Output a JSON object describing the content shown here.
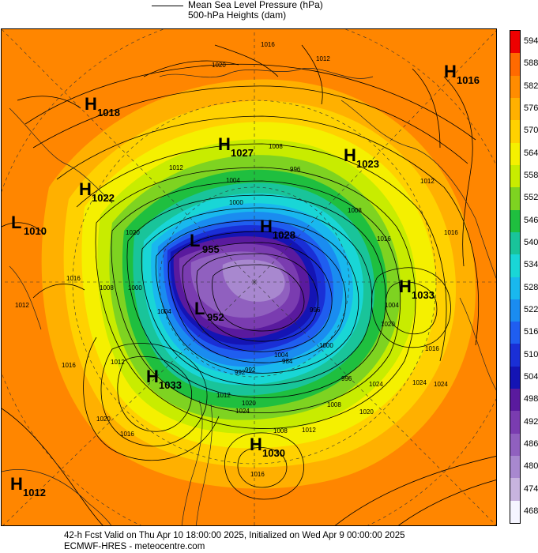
{
  "legend": {
    "line_label_1": "Mean Sea Level Pressure (hPa)",
    "line_label_2": "500-hPa Heights (dam)"
  },
  "colorbar": {
    "levels": [
      "594",
      "588",
      "582",
      "576",
      "570",
      "564",
      "558",
      "552",
      "546",
      "540",
      "534",
      "528",
      "522",
      "516",
      "510",
      "504",
      "498",
      "492",
      "486",
      "480",
      "474",
      "468"
    ],
    "colors": [
      "#ee0000",
      "#ff6a00",
      "#ff8c00",
      "#ffb000",
      "#ffd100",
      "#f5f000",
      "#c8ec00",
      "#7ed321",
      "#1fbf3f",
      "#19c49a",
      "#19d6d6",
      "#19b8ee",
      "#1a8cf0",
      "#1f5ef0",
      "#1a2fd6",
      "#1414b4",
      "#5a1a9e",
      "#7a3cb0",
      "#9060bf",
      "#a888cf",
      "#c8b4df",
      "#f5f5ff"
    ]
  },
  "map": {
    "pressure_centers": [
      {
        "type": "H",
        "value": "1018"
      },
      {
        "type": "H",
        "value": "1022"
      },
      {
        "type": "L",
        "value": "1010"
      },
      {
        "type": "H",
        "value": "1027"
      },
      {
        "type": "H",
        "value": "1023"
      },
      {
        "type": "H",
        "value": "1016"
      },
      {
        "type": "L",
        "value": "955"
      },
      {
        "type": "H",
        "value": "1028"
      },
      {
        "type": "L",
        "value": "952"
      },
      {
        "type": "H",
        "value": "1033"
      },
      {
        "type": "H",
        "value": "1033"
      },
      {
        "type": "H",
        "value": "1030"
      },
      {
        "type": "H",
        "value": "1012"
      }
    ],
    "isobar_labels": [
      "1016",
      "1012",
      "1020",
      "1012",
      "1008",
      "1004",
      "1000",
      "996",
      "1008",
      "1016",
      "1020",
      "1016",
      "1012",
      "1008",
      "1000",
      "1004",
      "1004",
      "1000",
      "996",
      "992",
      "1012",
      "1020",
      "1024",
      "1016",
      "1008",
      "1012",
      "1020",
      "1024",
      "1016",
      "1024",
      "1012",
      "1016",
      "1008",
      "1020",
      "1016",
      "992",
      "984",
      "996",
      "1012",
      "1016",
      "1020",
      "1024",
      "1004"
    ]
  },
  "footer": {
    "line1": "42-h Fcst Valid on Thu Apr 10 18:00:00 2025, Initialized on Wed Apr  9 00:00:00 2025",
    "line2": "ECMWF-HRES  - meteocentre.com"
  }
}
